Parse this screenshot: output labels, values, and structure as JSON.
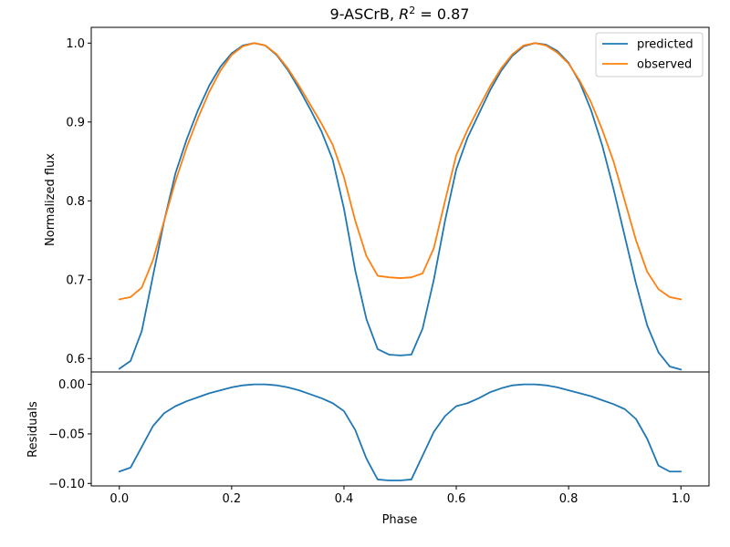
{
  "chart_data": [
    {
      "type": "line",
      "title_main": "9-ASCrB, ",
      "title_r": "R",
      "title_sup": "2",
      "title_tail": " = 0.87",
      "xlabel": "",
      "ylabel": "Normalized flux",
      "xlim": [
        -0.05,
        1.05
      ],
      "ylim": [
        0.583,
        1.02
      ],
      "yticks": [
        0.6,
        0.7,
        0.8,
        0.9,
        1.0
      ],
      "ytick_labels": [
        "0.6",
        "0.7",
        "0.8",
        "0.9",
        "1.0"
      ],
      "legend_position": "top-right",
      "grid": false,
      "x": [
        0.0,
        0.02,
        0.04,
        0.06,
        0.08,
        0.1,
        0.12,
        0.14,
        0.16,
        0.18,
        0.2,
        0.22,
        0.24,
        0.26,
        0.28,
        0.3,
        0.32,
        0.34,
        0.36,
        0.38,
        0.4,
        0.42,
        0.44,
        0.46,
        0.48,
        0.5,
        0.52,
        0.54,
        0.56,
        0.58,
        0.6,
        0.62,
        0.64,
        0.66,
        0.68,
        0.7,
        0.72,
        0.74,
        0.76,
        0.78,
        0.8,
        0.82,
        0.84,
        0.86,
        0.88,
        0.9,
        0.92,
        0.94,
        0.96,
        0.98,
        1.0
      ],
      "series": [
        {
          "name": "predicted",
          "color": "#1f77b4",
          "values": [
            0.587,
            0.597,
            0.635,
            0.705,
            0.775,
            0.835,
            0.878,
            0.915,
            0.946,
            0.97,
            0.987,
            0.997,
            1.0,
            0.997,
            0.985,
            0.966,
            0.942,
            0.916,
            0.888,
            0.852,
            0.79,
            0.712,
            0.65,
            0.612,
            0.605,
            0.604,
            0.605,
            0.638,
            0.7,
            0.775,
            0.84,
            0.88,
            0.91,
            0.94,
            0.965,
            0.984,
            0.996,
            1.0,
            0.998,
            0.99,
            0.975,
            0.95,
            0.915,
            0.87,
            0.815,
            0.755,
            0.695,
            0.642,
            0.608,
            0.59,
            0.586
          ]
        },
        {
          "name": "observed",
          "color": "#ff7f0e",
          "values": [
            0.675,
            0.678,
            0.69,
            0.725,
            0.775,
            0.825,
            0.868,
            0.905,
            0.938,
            0.965,
            0.985,
            0.996,
            1.0,
            0.997,
            0.986,
            0.968,
            0.946,
            0.922,
            0.898,
            0.871,
            0.83,
            0.775,
            0.73,
            0.705,
            0.703,
            0.702,
            0.703,
            0.708,
            0.74,
            0.8,
            0.858,
            0.89,
            0.918,
            0.945,
            0.968,
            0.986,
            0.997,
            1.0,
            0.997,
            0.988,
            0.974,
            0.952,
            0.925,
            0.89,
            0.85,
            0.8,
            0.75,
            0.71,
            0.688,
            0.678,
            0.675
          ]
        }
      ]
    },
    {
      "type": "line",
      "xlabel": "Phase",
      "ylabel": "Residuals",
      "xlim": [
        -0.05,
        1.05
      ],
      "ylim": [
        -0.1025,
        0.0125
      ],
      "xticks": [
        0.0,
        0.2,
        0.4,
        0.6,
        0.8,
        1.0
      ],
      "xtick_labels": [
        "0.0",
        "0.2",
        "0.4",
        "0.6",
        "0.8",
        "1.0"
      ],
      "yticks": [
        -0.1,
        -0.05,
        0.0
      ],
      "ytick_labels": [
        "−0.10",
        "−0.05",
        "0.00"
      ],
      "grid": false,
      "x": [
        0.0,
        0.02,
        0.04,
        0.06,
        0.08,
        0.1,
        0.12,
        0.14,
        0.16,
        0.18,
        0.2,
        0.22,
        0.24,
        0.26,
        0.28,
        0.3,
        0.32,
        0.34,
        0.36,
        0.38,
        0.4,
        0.42,
        0.44,
        0.46,
        0.48,
        0.5,
        0.52,
        0.54,
        0.56,
        0.58,
        0.6,
        0.62,
        0.64,
        0.66,
        0.68,
        0.7,
        0.72,
        0.74,
        0.76,
        0.78,
        0.8,
        0.82,
        0.84,
        0.86,
        0.88,
        0.9,
        0.92,
        0.94,
        0.96,
        0.98,
        1.0
      ],
      "series": [
        {
          "color": "#1f77b4",
          "values": [
            -0.088,
            -0.084,
            -0.063,
            -0.042,
            -0.029,
            -0.022,
            -0.017,
            -0.013,
            -0.009,
            -0.006,
            -0.003,
            -0.001,
            0.0,
            0.0,
            -0.001,
            -0.003,
            -0.006,
            -0.01,
            -0.014,
            -0.019,
            -0.027,
            -0.046,
            -0.075,
            -0.096,
            -0.097,
            -0.097,
            -0.096,
            -0.072,
            -0.048,
            -0.032,
            -0.022,
            -0.019,
            -0.014,
            -0.008,
            -0.004,
            -0.001,
            0.0,
            0.0,
            -0.001,
            -0.003,
            -0.006,
            -0.009,
            -0.012,
            -0.016,
            -0.02,
            -0.025,
            -0.035,
            -0.055,
            -0.082,
            -0.088,
            -0.088
          ]
        }
      ]
    }
  ]
}
